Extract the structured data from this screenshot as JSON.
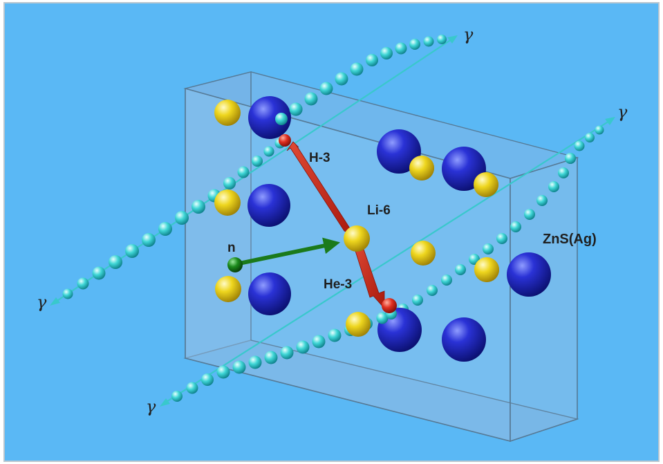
{
  "labels": {
    "h3": "H-3",
    "li6": "Li-6",
    "n": "n",
    "he3": "He-3",
    "zns": "ZnS(Ag)"
  },
  "gamma_symbol": "γ",
  "colors": {
    "background": "#5ab8f5",
    "crystal_face": "#8ab8e0",
    "zinc_atom": "#1e24b4",
    "sulfur_atom": "#e8d21e",
    "neutron": "#1b7a1b",
    "reaction_products": "#d03020",
    "gamma_beads": "#3fd6d6"
  },
  "icons": {
    "gamma_ray": "bead-chain-arrow",
    "atom": "shaded-sphere"
  }
}
